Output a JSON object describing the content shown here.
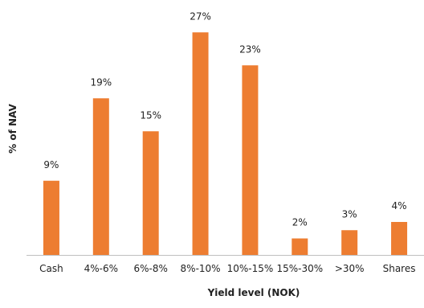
{
  "chart_data": {
    "type": "bar",
    "categories": [
      "Cash",
      "4%-6%",
      "6%-8%",
      "8%-10%",
      "10%-15%",
      "15%-30%",
      ">30%",
      "Shares"
    ],
    "values": [
      9,
      19,
      15,
      27,
      23,
      2,
      3,
      4
    ],
    "data_labels": [
      "9%",
      "19%",
      "15%",
      "27%",
      "23%",
      "2%",
      "3%",
      "4%"
    ],
    "xlabel": "Yield level (NOK)",
    "ylabel": "% of NAV",
    "ylim": [
      0,
      28
    ],
    "grid": false,
    "legend": "none",
    "bar_color": "#ED7D31",
    "axis_color": "#BFBFBF"
  }
}
